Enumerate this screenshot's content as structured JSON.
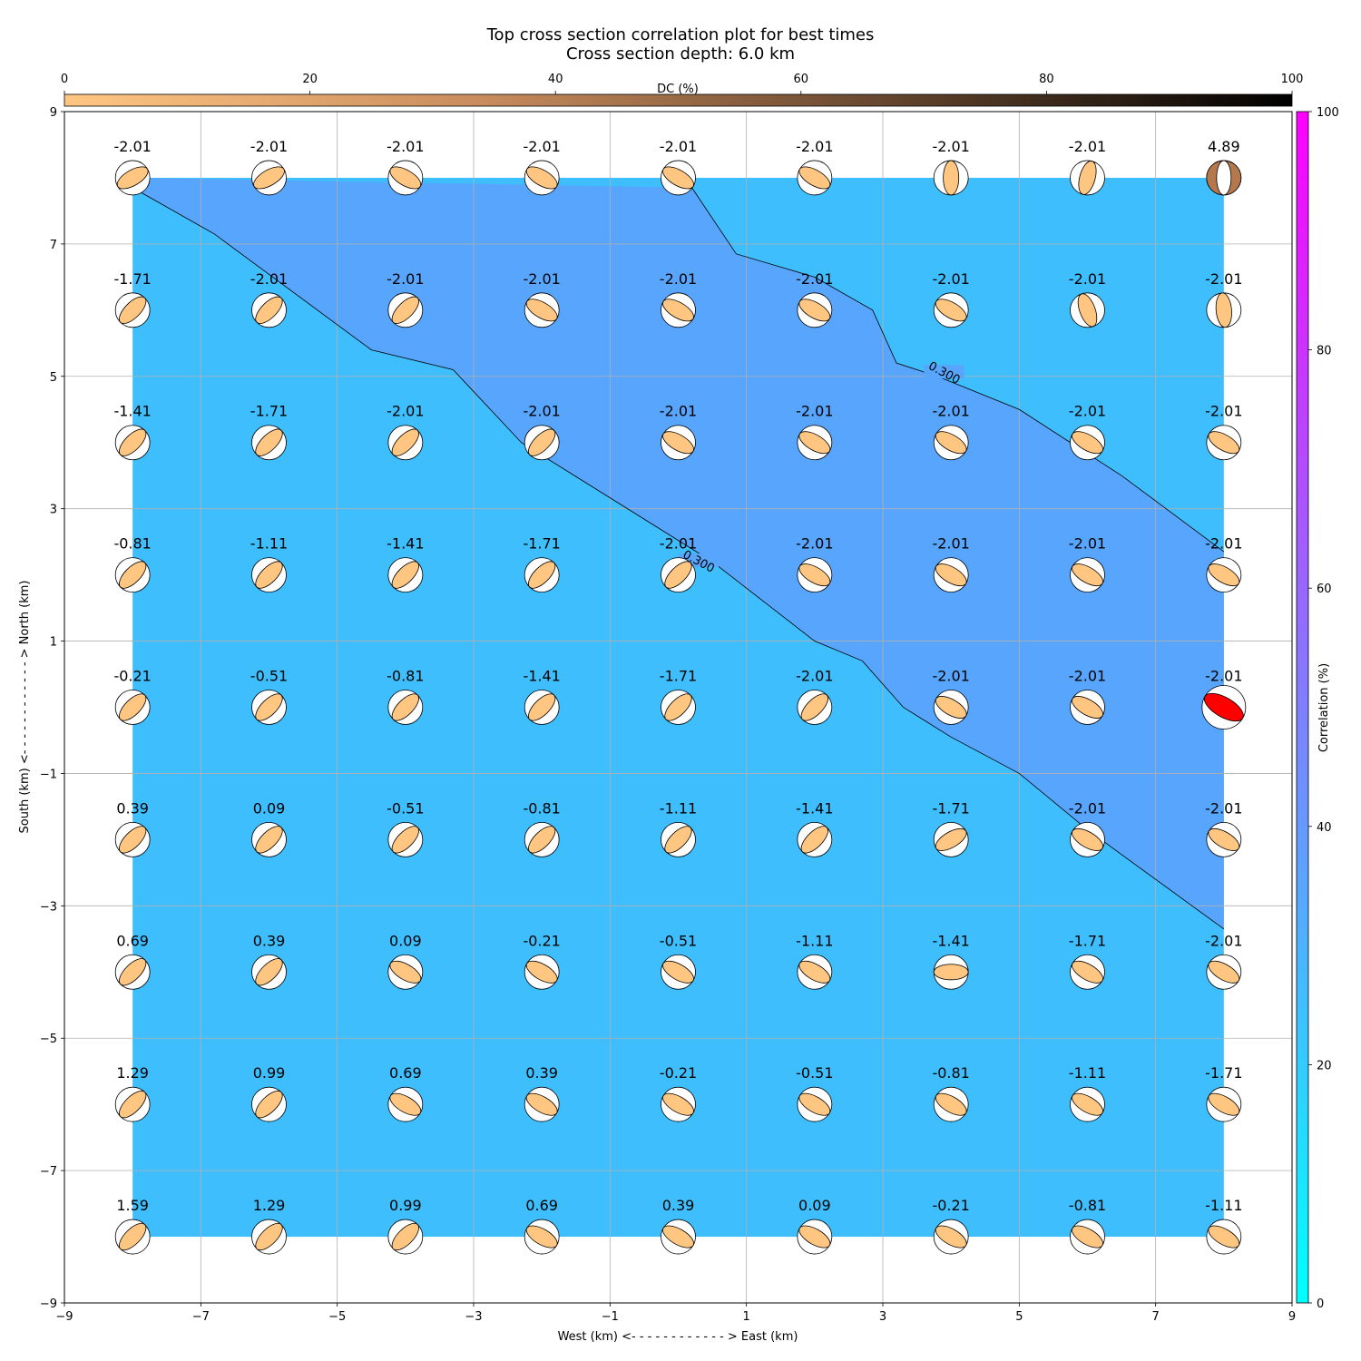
{
  "chart_data": {
    "type": "heatmap",
    "title": "Top cross section correlation plot for best times",
    "subtitle": "Cross section depth: 6.0 km",
    "xlabel": "West (km) <- - - - - - - - - - - - > East (km)",
    "ylabel": "South (km) <- - - - - - - - - - - - > North (km)",
    "xlim": [
      -9,
      9
    ],
    "ylim": [
      -9,
      9
    ],
    "xticks": [
      "−9",
      "−7",
      "−5",
      "−3",
      "−1",
      "1",
      "3",
      "5",
      "7",
      "9"
    ],
    "yticks": [
      "−9",
      "−7",
      "−5",
      "−3",
      "−1",
      "1",
      "3",
      "5",
      "7",
      "9"
    ],
    "tick_values": [
      -9,
      -7,
      -5,
      -3,
      -1,
      1,
      3,
      5,
      7,
      9
    ],
    "grid": true,
    "x": [
      -8,
      -6,
      -4,
      -2,
      0,
      2,
      4,
      6,
      8
    ],
    "y": [
      8,
      6,
      4,
      2,
      0,
      -2,
      -4,
      -6,
      -8
    ],
    "labels": [
      [
        "-2.01",
        "-2.01",
        "-2.01",
        "-2.01",
        "-2.01",
        "-2.01",
        "-2.01",
        "-2.01",
        "4.89"
      ],
      [
        "-1.71",
        "-2.01",
        "-2.01",
        "-2.01",
        "-2.01",
        "-2.01",
        "-2.01",
        "-2.01",
        "-2.01"
      ],
      [
        "-1.41",
        "-1.71",
        "-2.01",
        "-2.01",
        "-2.01",
        "-2.01",
        "-2.01",
        "-2.01",
        "-2.01"
      ],
      [
        "-0.81",
        "-1.11",
        "-1.41",
        "-1.71",
        "-2.01",
        "-2.01",
        "-2.01",
        "-2.01",
        "-2.01"
      ],
      [
        "-0.21",
        "-0.51",
        "-0.81",
        "-1.41",
        "-1.71",
        "-2.01",
        "-2.01",
        "-2.01",
        "-2.01"
      ],
      [
        "0.39",
        "0.09",
        "-0.51",
        "-0.81",
        "-1.11",
        "-1.41",
        "-1.71",
        "-2.01",
        "-2.01"
      ],
      [
        "0.69",
        "0.39",
        "0.09",
        "-0.21",
        "-0.51",
        "-1.11",
        "-1.41",
        "-1.71",
        "-2.01"
      ],
      [
        "1.29",
        "0.99",
        "0.69",
        "0.39",
        "-0.21",
        "-0.51",
        "-0.81",
        "-1.11",
        "-1.71"
      ],
      [
        "1.59",
        "1.29",
        "0.99",
        "0.69",
        "0.39",
        "0.09",
        "-0.21",
        "-0.81",
        "-1.11"
      ]
    ],
    "mechanism_angles_deg": [
      [
        -30,
        -30,
        30,
        30,
        30,
        30,
        90,
        -75,
        -90
      ],
      [
        -45,
        -45,
        -45,
        30,
        30,
        30,
        30,
        70,
        85
      ],
      [
        -45,
        -45,
        -45,
        -45,
        30,
        30,
        30,
        30,
        30
      ],
      [
        -45,
        -45,
        -45,
        -45,
        -45,
        30,
        30,
        30,
        30
      ],
      [
        -45,
        -45,
        -45,
        -45,
        -45,
        -45,
        30,
        30,
        30
      ],
      [
        -45,
        -45,
        -45,
        -45,
        -45,
        -45,
        -30,
        30,
        30
      ],
      [
        -45,
        -45,
        30,
        30,
        30,
        30,
        0,
        30,
        30
      ],
      [
        -45,
        -45,
        30,
        30,
        30,
        30,
        30,
        30,
        30
      ],
      [
        -45,
        -45,
        -45,
        30,
        30,
        30,
        30,
        30,
        30
      ]
    ],
    "best_solution": {
      "x": 8,
      "y": 0,
      "color": "#ff0000"
    },
    "special_solution": {
      "x": 8,
      "y": 8,
      "color": "#b5784c"
    },
    "mechanism_color": "#ffc682",
    "contour_level_label": "0.300",
    "contour_lines": [
      [
        [
          -8,
          7.85
        ],
        [
          -6.8,
          7.15
        ],
        [
          -4.5,
          5.4
        ],
        [
          -3.3,
          5.1
        ],
        [
          -2.3,
          4.0
        ],
        [
          0.5,
          2.2
        ],
        [
          2.0,
          1.0
        ],
        [
          2.7,
          0.7
        ],
        [
          3.3,
          0.0
        ],
        [
          4.0,
          -0.45
        ],
        [
          5.0,
          -1.0
        ],
        [
          6.0,
          -1.85
        ],
        [
          8.0,
          -3.35
        ]
      ],
      [
        [
          0.2,
          7.85
        ],
        [
          0.85,
          6.85
        ],
        [
          2.0,
          6.5
        ],
        [
          2.85,
          6.0
        ],
        [
          3.2,
          5.2
        ],
        [
          3.8,
          5.0
        ],
        [
          5.0,
          4.5
        ],
        [
          6.5,
          3.5
        ],
        [
          8.0,
          2.35
        ]
      ]
    ],
    "contour_label_positions": [
      [
        0.3,
        2.2
      ],
      [
        3.9,
        5.05
      ]
    ],
    "regions": {
      "low_color": "#3fbefd",
      "high_color": "#58a5fd"
    },
    "colorbar_dc": {
      "label": "DC (%)",
      "ticks": [
        "0",
        "20",
        "40",
        "60",
        "80",
        "100"
      ],
      "tick_values": [
        0,
        20,
        40,
        60,
        80,
        100
      ],
      "colors": [
        "#ffc682",
        "#000000"
      ]
    },
    "colorbar_corr": {
      "label": "Correlation (%)",
      "ticks": [
        "0",
        "20",
        "40",
        "60",
        "80",
        "100"
      ],
      "tick_values": [
        0,
        20,
        40,
        60,
        80,
        100
      ],
      "colors": [
        "#00ffff",
        "#ff00ff"
      ]
    }
  }
}
